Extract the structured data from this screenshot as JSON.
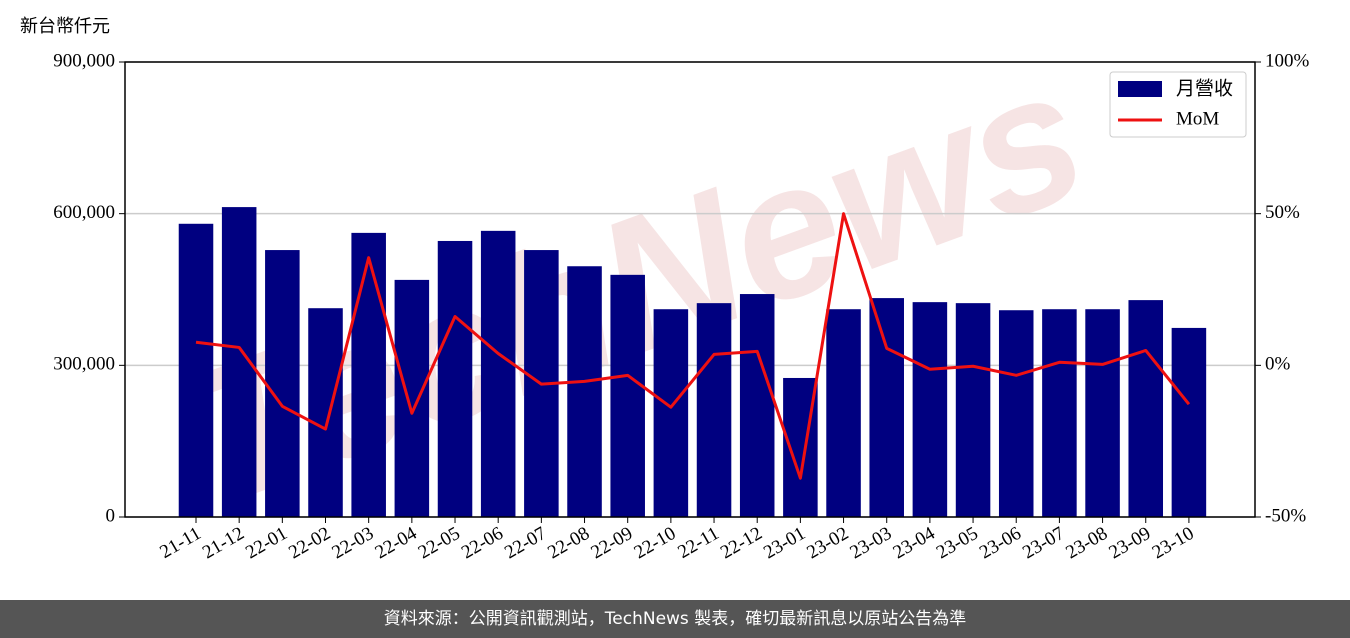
{
  "chart_data": {
    "type": "bar",
    "y_label": "新台幣仟元",
    "watermark": "TechNews",
    "footer": "資料來源：公開資訊觀測站，TechNews 製表，確切最新訊息以原站公告為準",
    "categories": [
      "21-11",
      "21-12",
      "22-01",
      "22-02",
      "22-03",
      "22-04",
      "22-05",
      "22-06",
      "22-07",
      "22-08",
      "22-09",
      "22-10",
      "22-11",
      "22-12",
      "23-01",
      "23-02",
      "23-03",
      "23-04",
      "23-05",
      "23-06",
      "23-07",
      "23-08",
      "23-09",
      "23-10"
    ],
    "series": [
      {
        "name": "月營收",
        "type": "bar",
        "color": "#000080",
        "axis": "y",
        "values": [
          580000,
          613000,
          528000,
          413000,
          562000,
          469000,
          546000,
          566000,
          528000,
          496000,
          479000,
          411000,
          423000,
          441000,
          275000,
          411000,
          433000,
          425000,
          423000,
          409000,
          411000,
          411000,
          429000,
          374000
        ]
      },
      {
        "name": "MoM",
        "type": "line",
        "color": "#ee1111",
        "axis": "y2",
        "values": [
          7.6,
          5.9,
          -13.5,
          -21,
          35.5,
          -15.8,
          16.1,
          3.9,
          -6.2,
          -5.3,
          -3.3,
          -13.8,
          3.6,
          4.6,
          -37.2,
          50,
          5.6,
          -1.3,
          -0.3,
          -3.3,
          1.0,
          0.3,
          4.9,
          -12.8
        ]
      }
    ],
    "ylim": [
      0,
      900000
    ],
    "yticks": [
      0,
      {
        "value": 300000,
        "label": "300,000"
      },
      {
        "value": 600000,
        "label": "600,000"
      },
      {
        "value": 900000,
        "label": "900,000"
      }
    ],
    "y2lim": [
      -50,
      100
    ],
    "y2ticks": [
      {
        "value": -50,
        "label": "-50%"
      },
      {
        "value": 0,
        "label": "0%"
      },
      {
        "value": 50,
        "label": "50%"
      },
      {
        "value": 100,
        "label": "100%"
      }
    ],
    "grid": true,
    "legend": "upper right"
  }
}
